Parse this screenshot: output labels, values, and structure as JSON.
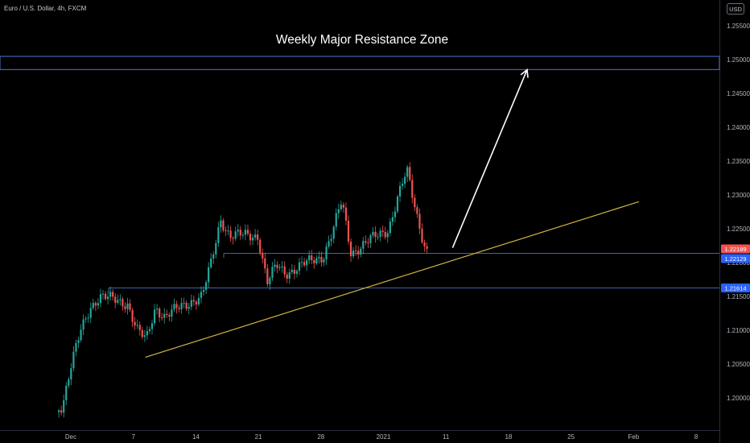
{
  "symbol_header": "Euro / U.S. Dollar, 4h, FXCM",
  "currency_button": "USD",
  "annotation_title": "Weekly Major Resistance Zone",
  "price_badges": {
    "upper": "1.22189",
    "middle": "1.22129",
    "support": "1.21614"
  },
  "colors": {
    "background": "#000000",
    "up_candle": "#26a69a",
    "down_candle": "#ef5350",
    "horizontal_line": "#3f62b3",
    "trendline": "#d2b442",
    "arrow": "#ffffff",
    "badge_red": "#ef5350",
    "badge_blue": "#2962ff"
  },
  "chart_data": {
    "type": "candlestick",
    "title": "Euro / U.S. Dollar, 4h, FXCM",
    "x_tick_labels": [
      "Dec",
      "7",
      "14",
      "21",
      "28",
      "2021",
      "11",
      "18",
      "25",
      "Feb",
      "8"
    ],
    "y_tick_labels": [
      "1.25500",
      "1.25000",
      "1.24500",
      "1.24000",
      "1.23500",
      "1.23000",
      "1.22500",
      "1.22000",
      "1.21500",
      "1.21000",
      "1.20500",
      "1.20000"
    ],
    "ylim": [
      1.195,
      1.2585
    ],
    "grid": false,
    "x_axis_position": "bottom",
    "y_axis_position": "right",
    "resistance_zone": [
      1.249,
      1.25
    ],
    "horizontal_levels": [
      1.2221,
      1.216
    ],
    "trendline": {
      "from": {
        "date": "2020-12-09",
        "price": 1.206
      },
      "to": {
        "date": "2021-01-31",
        "price": 1.229
      }
    },
    "projection_arrow": {
      "from": {
        "date": "2021-01-11",
        "price": 1.2222
      },
      "to": {
        "date": "2021-01-19",
        "price": 1.2485
      }
    },
    "price_path": [
      {
        "date": "2020-11-27",
        "price": 1.196
      },
      {
        "date": "2020-11-30",
        "price": 1.199
      },
      {
        "date": "2020-12-01",
        "price": 1.205
      },
      {
        "date": "2020-12-02",
        "price": 1.21
      },
      {
        "date": "2020-12-03",
        "price": 1.2135
      },
      {
        "date": "2020-12-04",
        "price": 1.215
      },
      {
        "date": "2020-12-07",
        "price": 1.214
      },
      {
        "date": "2020-12-08",
        "price": 1.21
      },
      {
        "date": "2020-12-09",
        "price": 1.2085
      },
      {
        "date": "2020-12-10",
        "price": 1.2135
      },
      {
        "date": "2020-12-11",
        "price": 1.212
      },
      {
        "date": "2020-12-14",
        "price": 1.2145
      },
      {
        "date": "2020-12-15",
        "price": 1.215
      },
      {
        "date": "2020-12-16",
        "price": 1.22
      },
      {
        "date": "2020-12-17",
        "price": 1.2265
      },
      {
        "date": "2020-12-18",
        "price": 1.224
      },
      {
        "date": "2020-12-21",
        "price": 1.224
      },
      {
        "date": "2020-12-22",
        "price": 1.217
      },
      {
        "date": "2020-12-23",
        "price": 1.2195
      },
      {
        "date": "2020-12-24",
        "price": 1.2185
      },
      {
        "date": "2020-12-28",
        "price": 1.221
      },
      {
        "date": "2020-12-29",
        "price": 1.2245
      },
      {
        "date": "2020-12-30",
        "price": 1.229
      },
      {
        "date": "2020-12-31",
        "price": 1.2215
      },
      {
        "date": "2021-01-04",
        "price": 1.225
      },
      {
        "date": "2021-01-05",
        "price": 1.2295
      },
      {
        "date": "2021-01-06",
        "price": 1.2335
      },
      {
        "date": "2021-01-07",
        "price": 1.2275
      },
      {
        "date": "2021-01-08",
        "price": 1.222
      },
      {
        "date": "2021-01-11",
        "price": 1.2165
      }
    ]
  }
}
